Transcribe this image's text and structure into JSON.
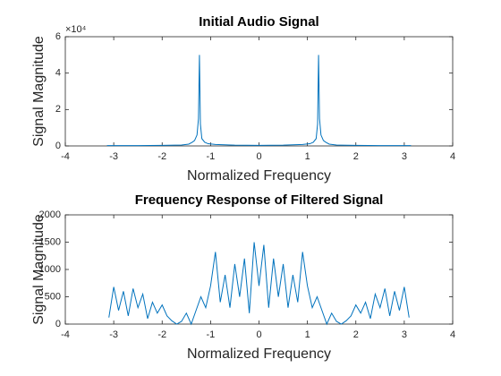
{
  "chart_data": [
    {
      "type": "line",
      "title": "Initial Audio Signal",
      "xlabel": "Normalized Frequency",
      "ylabel": "Signal Magnitude",
      "y_exponent_label": "×10⁴",
      "color": "#0072bd",
      "x": [
        -3.14,
        -2.5,
        -2.0,
        -1.6,
        -1.45,
        -1.38,
        -1.33,
        -1.28,
        -1.25,
        -1.23,
        -1.21,
        -1.18,
        -1.12,
        -1.05,
        -0.9,
        -0.5,
        0,
        0.5,
        0.9,
        1.05,
        1.12,
        1.18,
        1.21,
        1.23,
        1.25,
        1.28,
        1.33,
        1.38,
        1.45,
        1.6,
        2.0,
        2.5,
        3.14
      ],
      "values": [
        0.02,
        0.02,
        0.03,
        0.05,
        0.1,
        0.2,
        0.3,
        0.6,
        1.5,
        5.0,
        1.2,
        0.4,
        0.2,
        0.12,
        0.08,
        0.04,
        0.03,
        0.04,
        0.08,
        0.12,
        0.2,
        0.4,
        1.2,
        5.0,
        1.5,
        0.6,
        0.3,
        0.2,
        0.1,
        0.05,
        0.03,
        0.02,
        0.02
      ],
      "xlim": [
        -4,
        4
      ],
      "xticks": [
        -4,
        -3,
        -2,
        -1,
        0,
        1,
        2,
        3,
        4
      ],
      "ylim": [
        0,
        6
      ],
      "yticks": [
        0,
        2,
        4,
        6
      ]
    },
    {
      "type": "line",
      "title": "Frequency Response of Filtered Signal",
      "xlabel": "Normalized Frequency",
      "ylabel": "Signal Magnitude",
      "color": "#0072bd",
      "x": [
        -3.1,
        -3.0,
        -2.9,
        -2.8,
        -2.7,
        -2.6,
        -2.5,
        -2.4,
        -2.3,
        -2.2,
        -2.1,
        -2.0,
        -1.9,
        -1.8,
        -1.7,
        -1.6,
        -1.5,
        -1.4,
        -1.3,
        -1.2,
        -1.1,
        -1.0,
        -0.9,
        -0.8,
        -0.7,
        -0.6,
        -0.5,
        -0.4,
        -0.3,
        -0.2,
        -0.1,
        0.0,
        0.1,
        0.2,
        0.3,
        0.4,
        0.5,
        0.6,
        0.7,
        0.8,
        0.9,
        1.0,
        1.1,
        1.2,
        1.3,
        1.4,
        1.5,
        1.6,
        1.7,
        1.8,
        1.9,
        2.0,
        2.1,
        2.2,
        2.3,
        2.4,
        2.5,
        2.6,
        2.7,
        2.8,
        2.9,
        3.0,
        3.1
      ],
      "values": [
        120,
        680,
        250,
        600,
        150,
        650,
        300,
        550,
        100,
        400,
        200,
        350,
        150,
        60,
        0,
        50,
        200,
        0,
        250,
        500,
        300,
        700,
        1320,
        400,
        900,
        300,
        1100,
        500,
        1200,
        200,
        1500,
        700,
        1450,
        300,
        1200,
        500,
        1100,
        300,
        900,
        400,
        1320,
        700,
        300,
        500,
        250,
        0,
        200,
        50,
        0,
        60,
        150,
        350,
        200,
        400,
        100,
        550,
        300,
        650,
        150,
        600,
        250,
        680,
        120
      ],
      "xlim": [
        -4,
        4
      ],
      "xticks": [
        -4,
        -3,
        -2,
        -1,
        0,
        1,
        2,
        3,
        4
      ],
      "ylim": [
        0,
        2000
      ],
      "yticks": [
        0,
        500,
        1000,
        1500,
        2000
      ]
    }
  ]
}
